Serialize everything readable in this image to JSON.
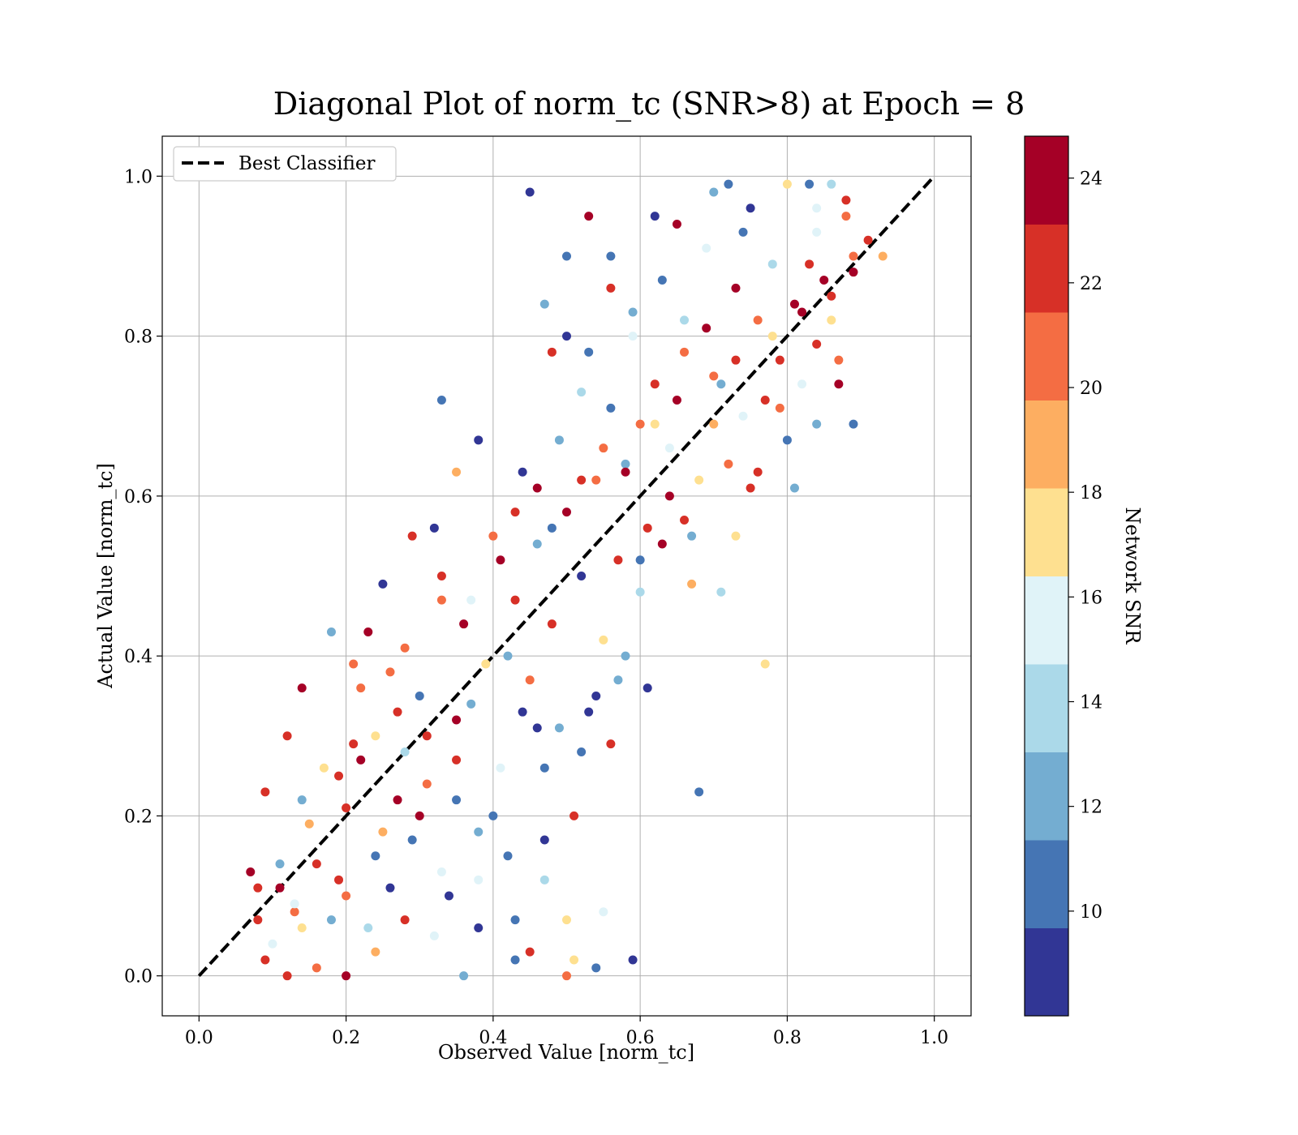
{
  "chart_data": {
    "type": "scatter",
    "title": "Diagonal Plot of norm_tc (SNR>8) at Epoch = 8",
    "xlabel": "Observed Value [norm_tc]",
    "ylabel": "Actual Value [norm_tc]",
    "xlim": [
      -0.05,
      1.05
    ],
    "ylim": [
      -0.05,
      1.05
    ],
    "x_ticks": [
      "0.0",
      "0.2",
      "0.4",
      "0.6",
      "0.8",
      "1.0"
    ],
    "y_ticks": [
      "0.0",
      "0.2",
      "0.4",
      "0.6",
      "0.8",
      "1.0"
    ],
    "grid": true,
    "legend": {
      "position": "top-left",
      "entries": [
        {
          "label": "Best Classifier",
          "style": "black dashed line"
        }
      ]
    },
    "reference_line": {
      "label": "Best Classifier",
      "x": [
        0,
        1
      ],
      "y": [
        0,
        1
      ],
      "color": "#000000"
    },
    "colorbar": {
      "label": "Network SNR",
      "range": [
        8,
        24.8
      ],
      "ticks": [
        "10",
        "12",
        "14",
        "16",
        "18",
        "20",
        "22",
        "24"
      ],
      "tick_values": [
        10,
        12,
        14,
        16,
        18,
        20,
        22,
        24
      ],
      "colors": [
        "#313695",
        "#4575b4",
        "#74add1",
        "#abd9e9",
        "#e0f3f8",
        "#fee090",
        "#fdae61",
        "#f46d43",
        "#d73027",
        "#a50026"
      ]
    },
    "series": [
      {
        "points": [
          [
            0.07,
            0.13,
            24
          ],
          [
            0.08,
            0.11,
            22
          ],
          [
            0.09,
            0.23,
            23
          ],
          [
            0.08,
            0.07,
            22
          ],
          [
            0.1,
            0.04,
            16
          ],
          [
            0.11,
            0.11,
            24
          ],
          [
            0.12,
            0.3,
            22
          ],
          [
            0.13,
            0.08,
            21
          ],
          [
            0.14,
            0.36,
            24
          ],
          [
            0.14,
            0.22,
            12
          ],
          [
            0.15,
            0.19,
            19
          ],
          [
            0.17,
            0.26,
            17
          ],
          [
            0.18,
            0.43,
            13
          ],
          [
            0.19,
            0.12,
            22
          ],
          [
            0.2,
            0.21,
            23
          ],
          [
            0.21,
            0.29,
            22
          ],
          [
            0.22,
            0.36,
            20
          ],
          [
            0.23,
            0.43,
            24
          ],
          [
            0.24,
            0.3,
            18
          ],
          [
            0.25,
            0.49,
            9
          ],
          [
            0.26,
            0.38,
            21
          ],
          [
            0.27,
            0.22,
            24
          ],
          [
            0.28,
            0.28,
            14
          ],
          [
            0.29,
            0.55,
            23
          ],
          [
            0.3,
            0.35,
            10
          ],
          [
            0.31,
            0.24,
            21
          ],
          [
            0.32,
            0.56,
            9
          ],
          [
            0.33,
            0.47,
            20
          ],
          [
            0.33,
            0.72,
            11
          ],
          [
            0.34,
            0.1,
            9
          ],
          [
            0.35,
            0.63,
            19
          ],
          [
            0.35,
            0.27,
            23
          ],
          [
            0.36,
            0.44,
            24
          ],
          [
            0.37,
            0.34,
            12
          ],
          [
            0.38,
            0.67,
            9
          ],
          [
            0.38,
            0.06,
            9
          ],
          [
            0.39,
            0.39,
            18
          ],
          [
            0.4,
            0.55,
            21
          ],
          [
            0.41,
            0.26,
            15
          ],
          [
            0.42,
            0.15,
            11
          ],
          [
            0.43,
            0.47,
            22
          ],
          [
            0.43,
            0.07,
            10
          ],
          [
            0.44,
            0.63,
            9
          ],
          [
            0.45,
            0.37,
            20
          ],
          [
            0.45,
            0.98,
            9
          ],
          [
            0.46,
            0.54,
            13
          ],
          [
            0.46,
            0.31,
            9
          ],
          [
            0.47,
            0.17,
            9
          ],
          [
            0.48,
            0.78,
            22
          ],
          [
            0.48,
            0.44,
            23
          ],
          [
            0.49,
            0.67,
            12
          ],
          [
            0.5,
            0.58,
            24
          ],
          [
            0.5,
            0.9,
            10
          ],
          [
            0.51,
            0.2,
            23
          ],
          [
            0.51,
            0.02,
            17
          ],
          [
            0.52,
            0.73,
            14
          ],
          [
            0.52,
            0.5,
            9
          ],
          [
            0.53,
            0.95,
            24
          ],
          [
            0.53,
            0.33,
            9
          ],
          [
            0.54,
            0.62,
            20
          ],
          [
            0.55,
            0.42,
            18
          ],
          [
            0.56,
            0.71,
            10
          ],
          [
            0.56,
            0.86,
            23
          ],
          [
            0.57,
            0.52,
            22
          ],
          [
            0.57,
            0.37,
            12
          ],
          [
            0.58,
            0.64,
            13
          ],
          [
            0.59,
            0.8,
            16
          ],
          [
            0.6,
            0.48,
            14
          ],
          [
            0.6,
            0.69,
            21
          ],
          [
            0.61,
            0.56,
            23
          ],
          [
            0.61,
            0.36,
            9
          ],
          [
            0.62,
            0.74,
            22
          ],
          [
            0.63,
            0.87,
            10
          ],
          [
            0.64,
            0.6,
            24
          ],
          [
            0.64,
            0.66,
            16
          ],
          [
            0.65,
            0.94,
            24
          ],
          [
            0.66,
            0.78,
            20
          ],
          [
            0.67,
            0.55,
            12
          ],
          [
            0.68,
            0.62,
            17
          ],
          [
            0.68,
            0.23,
            10
          ],
          [
            0.69,
            0.81,
            24
          ],
          [
            0.7,
            0.69,
            19
          ],
          [
            0.7,
            0.98,
            12
          ],
          [
            0.71,
            0.74,
            13
          ],
          [
            0.72,
            0.64,
            21
          ],
          [
            0.73,
            0.86,
            24
          ],
          [
            0.74,
            0.7,
            15
          ],
          [
            0.74,
            0.93,
            11
          ],
          [
            0.75,
            0.61,
            22
          ],
          [
            0.76,
            0.82,
            20
          ],
          [
            0.77,
            0.72,
            23
          ],
          [
            0.77,
            0.39,
            18
          ],
          [
            0.78,
            0.89,
            14
          ],
          [
            0.79,
            0.77,
            22
          ],
          [
            0.8,
            0.67,
            10
          ],
          [
            0.8,
            0.99,
            18
          ],
          [
            0.81,
            0.84,
            24
          ],
          [
            0.82,
            0.74,
            16
          ],
          [
            0.83,
            0.89,
            22
          ],
          [
            0.84,
            0.96,
            15
          ],
          [
            0.84,
            0.69,
            13
          ],
          [
            0.85,
            0.87,
            24
          ],
          [
            0.86,
            0.82,
            17
          ],
          [
            0.87,
            0.74,
            24
          ],
          [
            0.88,
            0.95,
            21
          ],
          [
            0.89,
            0.69,
            10
          ],
          [
            0.89,
            0.9,
            20
          ],
          [
            0.91,
            0.92,
            22
          ],
          [
            0.93,
            0.9,
            19
          ],
          [
            0.2,
            0.0,
            24
          ],
          [
            0.12,
            0.0,
            23
          ],
          [
            0.16,
            0.01,
            20
          ],
          [
            0.24,
            0.03,
            19
          ],
          [
            0.36,
            0.0,
            13
          ],
          [
            0.45,
            0.03,
            22
          ],
          [
            0.5,
            0.0,
            21
          ],
          [
            0.54,
            0.01,
            10
          ],
          [
            0.59,
            0.02,
            9
          ],
          [
            0.55,
            0.08,
            15
          ],
          [
            0.22,
            0.27,
            24
          ],
          [
            0.27,
            0.33,
            22
          ],
          [
            0.31,
            0.3,
            23
          ],
          [
            0.35,
            0.32,
            24
          ],
          [
            0.3,
            0.2,
            24
          ],
          [
            0.25,
            0.18,
            19
          ],
          [
            0.19,
            0.25,
            23
          ],
          [
            0.16,
            0.14,
            22
          ],
          [
            0.21,
            0.39,
            21
          ],
          [
            0.28,
            0.41,
            20
          ],
          [
            0.33,
            0.5,
            22
          ],
          [
            0.37,
            0.47,
            15
          ],
          [
            0.41,
            0.52,
            24
          ],
          [
            0.43,
            0.58,
            22
          ],
          [
            0.46,
            0.61,
            24
          ],
          [
            0.48,
            0.56,
            11
          ],
          [
            0.52,
            0.62,
            23
          ],
          [
            0.55,
            0.66,
            21
          ],
          [
            0.58,
            0.63,
            24
          ],
          [
            0.62,
            0.69,
            18
          ],
          [
            0.65,
            0.72,
            24
          ],
          [
            0.7,
            0.75,
            21
          ],
          [
            0.73,
            0.77,
            23
          ],
          [
            0.78,
            0.8,
            18
          ],
          [
            0.82,
            0.83,
            24
          ],
          [
            0.86,
            0.85,
            22
          ],
          [
            0.89,
            0.88,
            24
          ],
          [
            0.86,
            0.99,
            14
          ],
          [
            0.88,
            0.97,
            23
          ],
          [
            0.83,
            0.99,
            10
          ],
          [
            0.84,
            0.93,
            16
          ],
          [
            0.47,
            0.84,
            12
          ],
          [
            0.5,
            0.8,
            9
          ],
          [
            0.53,
            0.78,
            11
          ],
          [
            0.56,
            0.9,
            10
          ],
          [
            0.59,
            0.83,
            12
          ],
          [
            0.62,
            0.95,
            9
          ],
          [
            0.66,
            0.82,
            14
          ],
          [
            0.69,
            0.91,
            16
          ],
          [
            0.72,
            0.99,
            11
          ],
          [
            0.75,
            0.96,
            9
          ],
          [
            0.42,
            0.4,
            12
          ],
          [
            0.44,
            0.33,
            9
          ],
          [
            0.47,
            0.26,
            11
          ],
          [
            0.49,
            0.31,
            12
          ],
          [
            0.52,
            0.28,
            10
          ],
          [
            0.54,
            0.35,
            9
          ],
          [
            0.4,
            0.2,
            11
          ],
          [
            0.38,
            0.18,
            12
          ],
          [
            0.35,
            0.22,
            10
          ],
          [
            0.33,
            0.13,
            15
          ],
          [
            0.29,
            0.17,
            10
          ],
          [
            0.26,
            0.11,
            9
          ],
          [
            0.23,
            0.06,
            14
          ],
          [
            0.18,
            0.07,
            12
          ],
          [
            0.14,
            0.06,
            17
          ],
          [
            0.11,
            0.14,
            12
          ],
          [
            0.09,
            0.02,
            23
          ],
          [
            0.13,
            0.09,
            15
          ],
          [
            0.2,
            0.1,
            21
          ],
          [
            0.24,
            0.15,
            11
          ],
          [
            0.28,
            0.07,
            23
          ],
          [
            0.32,
            0.05,
            15
          ],
          [
            0.38,
            0.12,
            16
          ],
          [
            0.43,
            0.02,
            10
          ],
          [
            0.47,
            0.12,
            14
          ],
          [
            0.5,
            0.07,
            18
          ],
          [
            0.56,
            0.29,
            22
          ],
          [
            0.58,
            0.4,
            13
          ],
          [
            0.6,
            0.52,
            11
          ],
          [
            0.63,
            0.54,
            24
          ],
          [
            0.66,
            0.57,
            23
          ],
          [
            0.67,
            0.49,
            19
          ],
          [
            0.71,
            0.48,
            14
          ],
          [
            0.73,
            0.55,
            17
          ],
          [
            0.76,
            0.63,
            22
          ],
          [
            0.79,
            0.71,
            20
          ],
          [
            0.81,
            0.61,
            13
          ],
          [
            0.84,
            0.79,
            23
          ],
          [
            0.87,
            0.77,
            21
          ]
        ]
      }
    ]
  }
}
